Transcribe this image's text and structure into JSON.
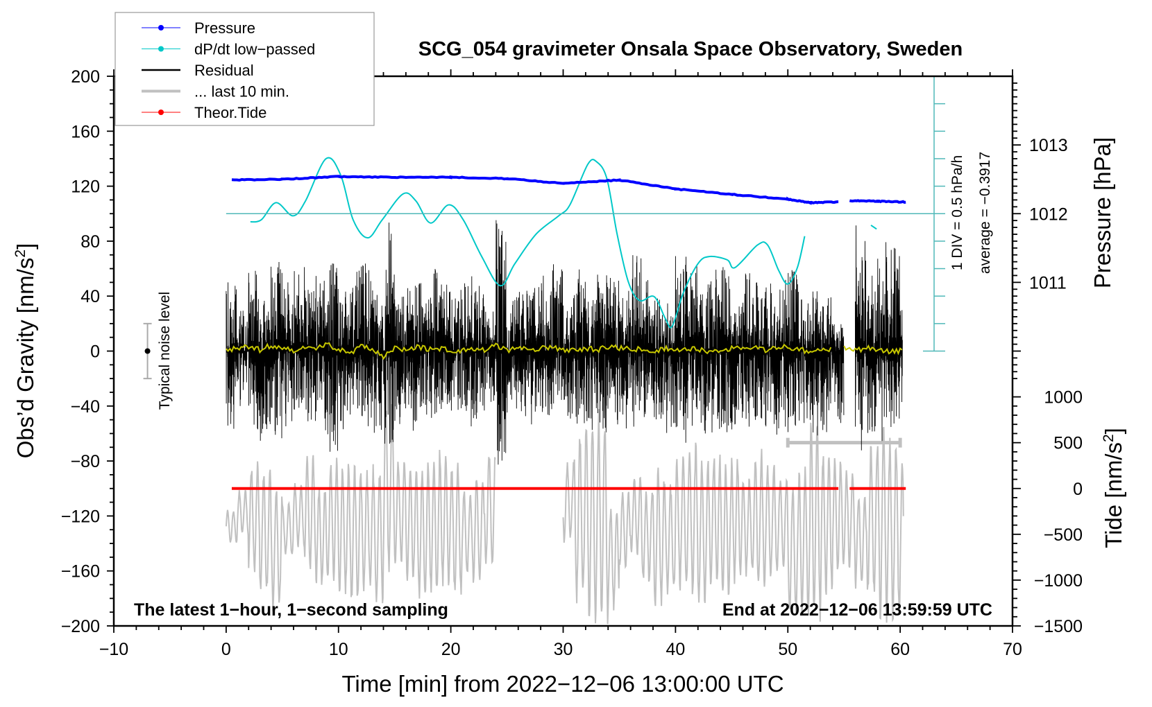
{
  "chart_data": {
    "type": "line",
    "title": "SCG_054 gravimeter Onsala Space Observatory, Sweden",
    "xlabel": "Time [min] from 2022−12−06 13:00:00 UTC",
    "ylabel": "Obs’d Gravity [nm/s",
    "ylabel_sup": "2",
    "ylabel_end": "]",
    "pressure_label": "Pressure [hPa]",
    "tide_label": "Tide [nm/s",
    "tide_label_sup": "2",
    "tide_label_end": "]",
    "xlim": [
      -10,
      70
    ],
    "ylim": [
      -200,
      200
    ],
    "pressure_lim": [
      1006,
      1014
    ],
    "tide_lim": [
      -1500,
      4500
    ],
    "dpdt_lim": [
      -2.5,
      2.5
    ],
    "grid": false,
    "xticks": [
      "−10",
      "0",
      "10",
      "20",
      "30",
      "40",
      "50",
      "60",
      "70"
    ],
    "xtick_values": [
      -10,
      0,
      10,
      20,
      30,
      40,
      50,
      60,
      70
    ],
    "yticks": [
      "200",
      "160",
      "120",
      "80",
      "40",
      "0",
      "−40",
      "−80",
      "−120",
      "−160",
      "−200"
    ],
    "ytick_values": [
      200,
      160,
      120,
      80,
      40,
      0,
      -40,
      -80,
      -120,
      -160,
      -200
    ],
    "pressure_ticks": [
      "1013",
      "1012",
      "1011"
    ],
    "pressure_tick_values": [
      1013,
      1012,
      1011
    ],
    "tide_ticks": [
      "1000",
      "500",
      "0",
      "−500",
      "−1000",
      "−1500"
    ],
    "tide_tick_values": [
      1000,
      500,
      0,
      -500,
      -1000,
      -1500
    ],
    "legend": {
      "position": "top-left",
      "entries": [
        {
          "label": "Pressure",
          "color": "#0000ff",
          "marker": "dot"
        },
        {
          "label": "dP/dt low−passed",
          "color": "#00c8c8",
          "marker": "dot"
        },
        {
          "label": "Residual",
          "color": "#000000",
          "marker": "line"
        },
        {
          "label": "... last 10 min.",
          "color": "#c0c0c0",
          "marker": "thick-line"
        },
        {
          "label": "Theor.Tide",
          "color": "#ff0000",
          "marker": "dot"
        }
      ]
    },
    "annotations": {
      "left_bottom": "The latest 1−hour, 1−second sampling",
      "right_bottom": "End at 2022−12−06 13:59:59 UTC",
      "dpdt_scale": "1 DIV = 0.5 hPa/h",
      "dpdt_average": "average = −0.3917",
      "noise_label": "Typical noise level"
    },
    "noise_level": {
      "x": -7,
      "low": -20,
      "high": 20,
      "center": 0
    },
    "series": {
      "pressure": {
        "color": "#0000ff",
        "x": [
          0.5,
          5,
          10,
          15,
          20,
          25,
          30,
          35,
          40,
          45,
          50,
          52,
          54.5,
          null,
          55.5,
          58,
          60.5
        ],
        "y": [
          1012.49,
          1012.5,
          1012.54,
          1012.53,
          1012.53,
          1012.51,
          1012.44,
          1012.49,
          1012.36,
          1012.28,
          1012.21,
          1012.16,
          1012.17,
          null,
          1012.19,
          1012.18,
          1012.17
        ]
      },
      "dpdt": {
        "color": "#00c8c8",
        "x": [
          2.16,
          3.14,
          4.44,
          5.95,
          7.06,
          8.89,
          10.2,
          11.3,
          12.6,
          13.9,
          15.75,
          16.9,
          18.2,
          19.8,
          21.1,
          22.75,
          24.4,
          25.7,
          27.6,
          29.6,
          30.6,
          32.2,
          33.0,
          33.9,
          34.8,
          35.8,
          36.8,
          38.1,
          39.1,
          39.7,
          40.7,
          42.0,
          43.0,
          44.6,
          45.3,
          47.3,
          48.2,
          49.2,
          50.0,
          50.85,
          51.5,
          null,
          57.4,
          57.9
        ],
        "y": [
          -0.15,
          -0.11,
          0.2,
          -0.04,
          0.23,
          1.0,
          0.7,
          -0.11,
          -0.44,
          -0.11,
          0.36,
          0.23,
          -0.17,
          0.16,
          -0.11,
          -0.78,
          -1.31,
          -0.91,
          -0.37,
          -0.04,
          0.16,
          0.9,
          0.94,
          0.63,
          -0.37,
          -1.24,
          -1.58,
          -1.51,
          -1.91,
          -2.05,
          -1.44,
          -0.91,
          -0.78,
          -0.84,
          -0.98,
          -0.57,
          -0.57,
          -1.04,
          -1.28,
          -0.98,
          -0.41,
          null,
          -0.21,
          -0.28
        ]
      },
      "residual": {
        "color": "#000000",
        "minutes": [
          0,
          1,
          2,
          3,
          4,
          5,
          6,
          7,
          8,
          9,
          10,
          11,
          12,
          13,
          14,
          15,
          16,
          17,
          18,
          19,
          20,
          21,
          22,
          23,
          24,
          25,
          26,
          27,
          28,
          29,
          30,
          31,
          32,
          33,
          34,
          35,
          36,
          37,
          38,
          39,
          40,
          41,
          42,
          43,
          44,
          45,
          46,
          47,
          48,
          49,
          50,
          51,
          52,
          53,
          54,
          55,
          56,
          57,
          58,
          59,
          60
        ],
        "max": [
          55,
          30,
          60,
          40,
          68,
          50,
          65,
          45,
          55,
          70,
          45,
          60,
          65,
          50,
          98,
          40,
          55,
          50,
          60,
          50,
          48,
          55,
          50,
          30,
          98,
          40,
          45,
          50,
          55,
          65,
          40,
          70,
          40,
          60,
          60,
          45,
          75,
          60,
          40,
          45,
          70,
          70,
          50,
          60,
          75,
          35,
          60,
          50,
          50,
          55,
          60,
          40,
          45,
          40,
          20,
          null,
          92,
          55,
          80,
          90,
          30
        ],
        "min": [
          -58,
          -40,
          -60,
          -70,
          -65,
          -55,
          -50,
          -55,
          -60,
          -85,
          -60,
          -50,
          -55,
          -60,
          -85,
          -55,
          -60,
          -50,
          -50,
          -45,
          -45,
          -55,
          -50,
          -40,
          -90,
          -45,
          -50,
          -55,
          -50,
          -45,
          -50,
          -55,
          -60,
          -60,
          -55,
          -60,
          -55,
          -55,
          -50,
          -60,
          -70,
          -55,
          -60,
          -60,
          -60,
          -60,
          -60,
          -60,
          -60,
          -62,
          -60,
          -60,
          -70,
          -60,
          -55,
          null,
          -85,
          -60,
          -70,
          -60,
          -50
        ]
      },
      "residual_smoothed": {
        "color": "#c8c800",
        "values": [
          1,
          2,
          3,
          1,
          4,
          2,
          0,
          3,
          2,
          5,
          1,
          -2,
          3,
          2,
          -5,
          2,
          1,
          3,
          1,
          2,
          1,
          0,
          2,
          1,
          4,
          0,
          2,
          1,
          2,
          3,
          1,
          0,
          2,
          1,
          3,
          2,
          2,
          1,
          0,
          2,
          1,
          2,
          1,
          0,
          1,
          2,
          1,
          3,
          1,
          2,
          3,
          1,
          0,
          1,
          null,
          2,
          1,
          2,
          1,
          0,
          0
        ]
      },
      "last_10_min": {
        "color": "#c0c0c0",
        "max": [
          -115,
          -100,
          -80,
          -85,
          -95,
          -110,
          -95,
          -75,
          -95,
          -75,
          -80,
          -80,
          -85,
          -80,
          -35,
          -75,
          -80,
          -80,
          -75,
          -70,
          -80,
          -100,
          -90,
          -70,
          null,
          null,
          null,
          null,
          null,
          null,
          -80,
          -55,
          -45,
          -40,
          -110,
          -100,
          -90,
          -100,
          -80,
          -95,
          -75,
          -65,
          -75,
          -70,
          -80,
          -75,
          -90,
          -70,
          -80,
          -90,
          -95,
          -80,
          -45,
          -70,
          -75,
          -85,
          -100,
          -65,
          -45,
          -60,
          -80
        ],
        "min": [
          -140,
          -135,
          -165,
          -180,
          -190,
          -150,
          -145,
          -165,
          -175,
          -170,
          -180,
          -185,
          -175,
          -190,
          -165,
          -160,
          -170,
          -185,
          -180,
          -175,
          -180,
          -165,
          -170,
          -160,
          null,
          null,
          null,
          null,
          null,
          null,
          -140,
          -185,
          -200,
          -200,
          -190,
          -160,
          -150,
          -170,
          -190,
          -180,
          -175,
          -180,
          -190,
          -175,
          -180,
          -170,
          -165,
          -180,
          -170,
          -160,
          -195,
          -195,
          -200,
          -180,
          -165,
          -160,
          -175,
          -180,
          -200,
          -200,
          -190
        ],
        "range_marker": {
          "x": [
            50,
            60
          ],
          "tide": 500
        }
      },
      "theor_tide": {
        "color": "#ff0000",
        "segments": [
          [
            0.5,
            54.5
          ],
          [
            55.5,
            60.5
          ]
        ],
        "value": 0
      }
    }
  }
}
